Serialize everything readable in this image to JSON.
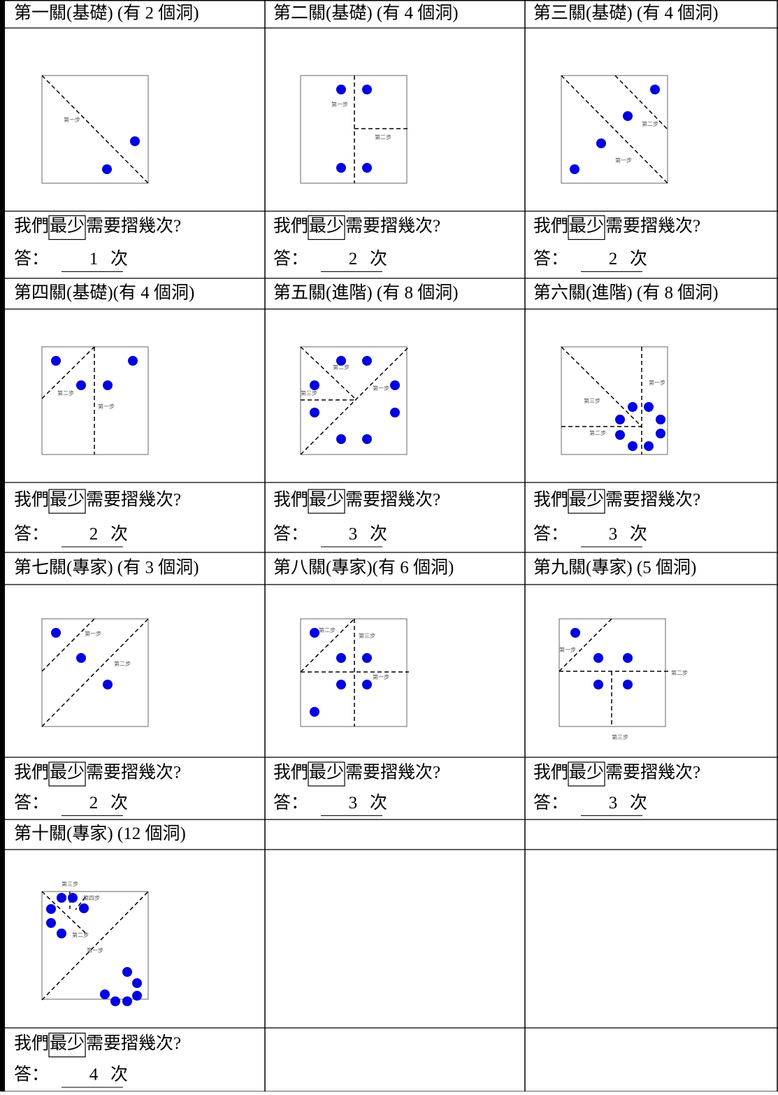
{
  "question": {
    "before": "我們",
    "boxed": "最少",
    "after": "需要摺幾次?"
  },
  "answer": {
    "label": "答：",
    "unit": "次"
  },
  "puzzles": [
    {
      "title": "第一關(基礎) (有 2 個洞)",
      "steps": [
        "第一步"
      ],
      "answer": 1
    },
    {
      "title": "第二關(基礎) (有 4 個洞)",
      "steps": [
        "第一步",
        "第二步"
      ],
      "answer": 2
    },
    {
      "title": "第三關(基礎) (有 4 個洞)",
      "steps": [
        "第二步",
        "第一步"
      ],
      "answer": 2
    },
    {
      "title": "第四關(基礎)(有 4 個洞)",
      "steps": [
        "第二步",
        "第一步"
      ],
      "answer": 2
    },
    {
      "title": "第五關(進階) (有 8 個洞)",
      "steps": [
        "第二步",
        "第一步",
        "第三步"
      ],
      "answer": 3
    },
    {
      "title": "第六關(進階) (有 8 個洞)",
      "steps": [
        "第一步",
        "第三步",
        "第二步"
      ],
      "answer": 3
    },
    {
      "title": "第七關(專家) (有 3 個洞)",
      "steps": [
        "第一步",
        "第二步"
      ],
      "answer": 2
    },
    {
      "title": "第八關(專家)(有 6 個洞)",
      "steps": [
        "第二步",
        "第三步",
        "第一步"
      ],
      "answer": 3
    },
    {
      "title": "第九關(專家) (5 個洞)",
      "steps": [
        "第一步",
        "第二步",
        "第三步"
      ],
      "answer": 3
    },
    {
      "title": "第十關(專家) (12 個洞)",
      "steps": [
        "第三步",
        "第四步",
        "第二步",
        "第一步"
      ],
      "answer": 4
    }
  ]
}
